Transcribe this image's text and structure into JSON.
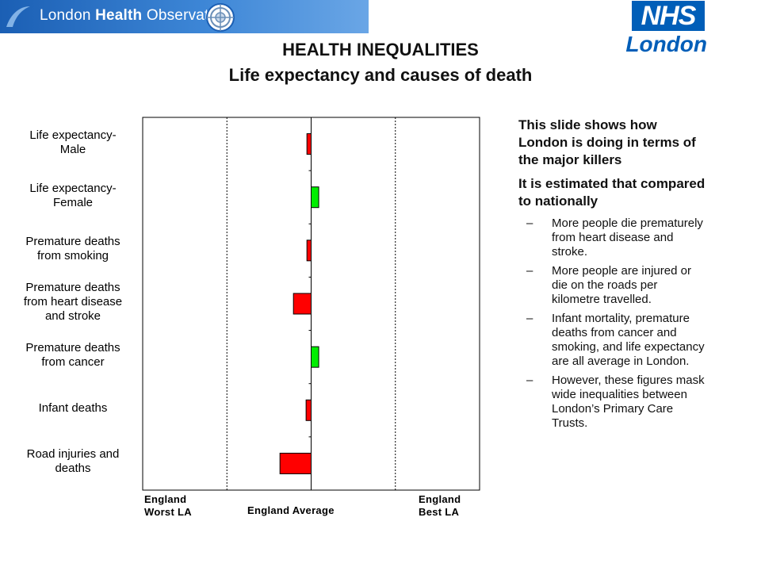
{
  "header": {
    "banner_text_plain": "London ",
    "banner_text_bold": "Health",
    "banner_text_tail": " Observatory",
    "nhs_mark": "NHS",
    "nhs_region": "London"
  },
  "title": "HEALTH INEQUALITIES",
  "subtitle": "Life expectancy and causes of death",
  "colors": {
    "worse": "#ff0000",
    "better": "#00ee00",
    "banner": "#2a70c6",
    "nhs_blue": "#005eb8"
  },
  "chart_data": {
    "type": "bar",
    "orientation": "horizontal",
    "categories": [
      "Life expectancy-\nMale",
      "Life expectancy-\nFemale",
      "Premature deaths\nfrom smoking",
      "Premature deaths\nfrom heart disease\nand stroke",
      "Premature deaths\nfrom cancer",
      "Infant deaths",
      "Road injuries and\ndeaths"
    ],
    "values": [
      -0.05,
      0.09,
      -0.05,
      -0.21,
      0.09,
      -0.06,
      -0.37
    ],
    "xlim": [
      -2,
      2
    ],
    "reference_lines": [
      -1,
      0,
      1
    ],
    "axis_labels": {
      "left": "England\nWorst LA",
      "center": "England Average",
      "right": "England\nBest LA"
    },
    "grid": false,
    "legend": "none"
  },
  "commentary": {
    "lead1": "This slide shows how London is doing in terms of the major killers",
    "lead2": "It is estimated that compared to nationally",
    "dash": "–",
    "bullets": [
      "More people die prematurely from heart disease and stroke.",
      "More people are injured or die on the roads per kilometre travelled.",
      "Infant mortality, premature deaths from cancer and smoking, and life expectancy are all average in London.",
      "However, these figures mask wide inequalities between London’s Primary Care Trusts."
    ]
  }
}
